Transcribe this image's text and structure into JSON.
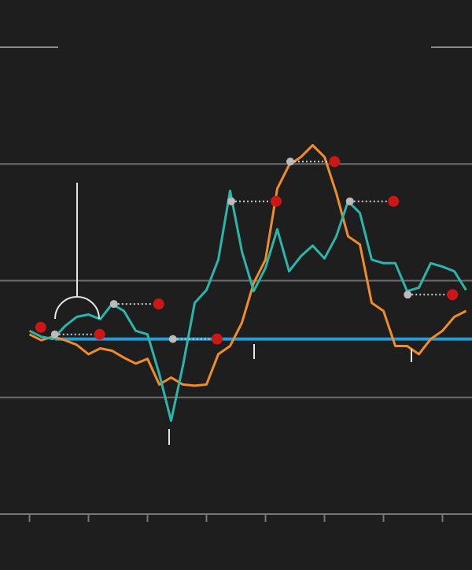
{
  "chart_data": {
    "type": "line",
    "x": [
      0,
      0.2,
      0.4,
      0.6,
      0.8,
      1,
      1.2,
      1.4,
      1.6,
      1.8,
      2,
      2.2,
      2.4,
      2.6,
      2.8,
      3,
      3.2,
      3.4,
      3.6,
      3.8,
      4,
      4.2,
      4.4,
      4.6,
      4.8,
      5,
      5.2,
      5.4,
      5.6,
      5.8,
      6,
      6.2,
      6.4,
      6.6,
      6.8,
      7,
      7.2,
      7.4
    ],
    "series": [
      {
        "color": "#f08c2a",
        "values": [
          1.54,
          1.49,
          1.52,
          1.49,
          1.45,
          1.37,
          1.42,
          1.4,
          1.34,
          1.29,
          1.33,
          1.11,
          1.17,
          1.11,
          1.1,
          1.11,
          1.37,
          1.44,
          1.64,
          1.98,
          2.18,
          2.79,
          2.99,
          3.06,
          3.16,
          3.06,
          2.75,
          2.38,
          2.31,
          1.81,
          1.74,
          1.44,
          1.44,
          1.37,
          1.5,
          1.57,
          1.69,
          1.74
        ]
      },
      {
        "color": "#2cb5aa",
        "values": [
          1.57,
          1.52,
          1.5,
          1.61,
          1.69,
          1.71,
          1.67,
          1.8,
          1.74,
          1.57,
          1.54,
          1.2,
          0.8,
          1.27,
          1.81,
          1.92,
          2.18,
          2.77,
          2.25,
          1.91,
          2.11,
          2.44,
          2.08,
          2.21,
          2.3,
          2.19,
          2.38,
          2.68,
          2.58,
          2.18,
          2.15,
          2.15,
          1.91,
          1.94,
          2.15,
          2.12,
          2.08,
          1.92
        ]
      }
    ],
    "reference_line": {
      "value": 1.5,
      "x_start": 0.43,
      "color": "#1aa0e0"
    },
    "gray_points": {
      "color": "#bbbbbb",
      "x": [
        0.43,
        1.43,
        2.43,
        3.42,
        4.42,
        5.43,
        6.41
      ],
      "values": [
        1.54,
        1.8,
        1.5,
        2.68,
        3.02,
        2.68,
        1.88
      ]
    },
    "red_points": {
      "color": "#cc1717",
      "x": [
        0.19,
        1.19,
        2.19,
        3.18,
        4.18,
        5.17,
        6.17,
        7.17
      ],
      "values": [
        1.6,
        1.54,
        1.8,
        1.5,
        2.68,
        3.02,
        2.68,
        1.88
      ]
    },
    "xlim": [
      -0.5,
      7.5
    ],
    "xticks": [
      0,
      1,
      2,
      3,
      4,
      5,
      6,
      7
    ],
    "ylim": [
      0,
      4
    ],
    "yticks": [
      1,
      2,
      3
    ],
    "grid": true
  }
}
